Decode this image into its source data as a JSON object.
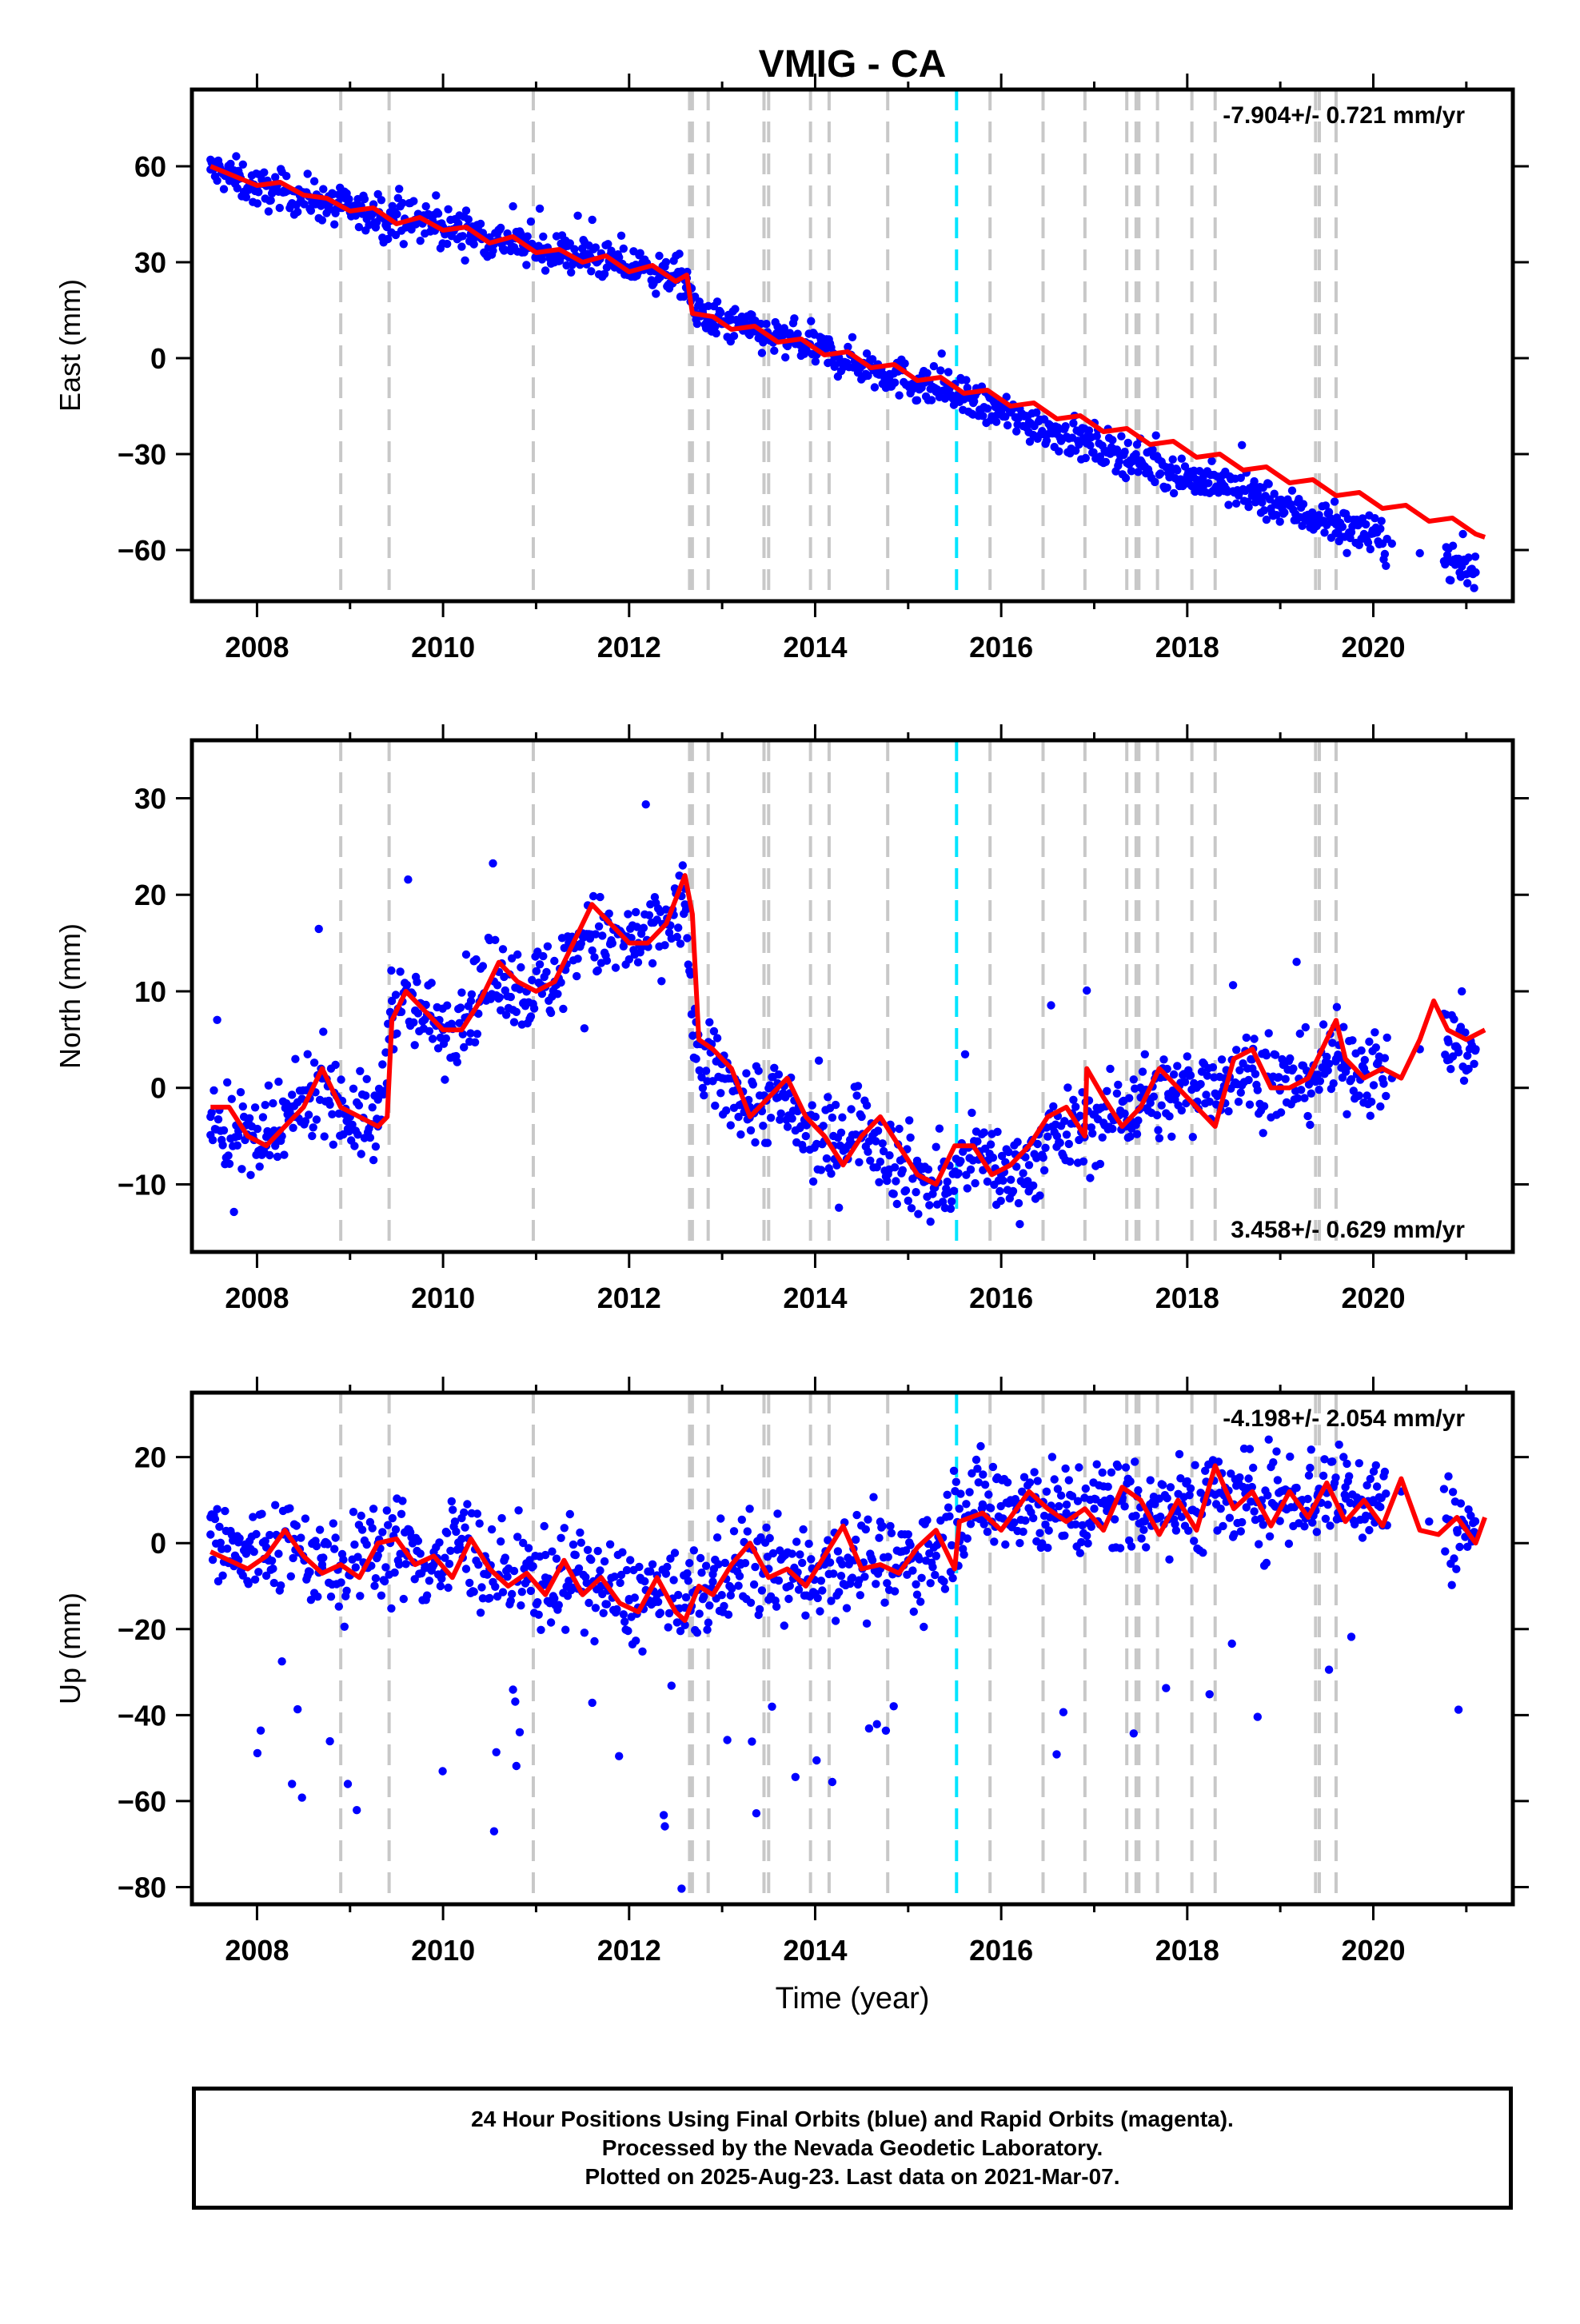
{
  "title": "VMIG - CA",
  "colors": {
    "data": "#0000ff",
    "model": "#ff0000",
    "event_line": "#c8c8c8",
    "equipment_line": "#00e5ff"
  },
  "xaxis": {
    "label": "Time (year)",
    "range": [
      2007.3,
      2021.5
    ],
    "ticks": [
      2008,
      2010,
      2012,
      2014,
      2016,
      2018,
      2020
    ],
    "tick_labels": [
      "2008",
      "2010",
      "2012",
      "2014",
      "2016",
      "2018",
      "2020"
    ]
  },
  "event_lines": [
    2008.9,
    2009.42,
    2010.97,
    2012.65,
    2012.68,
    2012.85,
    2013.45,
    2013.5,
    2013.95,
    2014.15,
    2014.78,
    2015.88,
    2016.45,
    2016.9,
    2017.35,
    2017.45,
    2017.48,
    2017.68,
    2018.05,
    2018.3,
    2019.38,
    2019.42,
    2019.6
  ],
  "equipment_lines": [
    2015.52
  ],
  "caption": [
    "24 Hour Positions Using Final Orbits (blue) and Rapid Orbits (magenta).",
    "Processed by the Nevada Geodetic Laboratory.",
    "Plotted on 2025-Aug-23. Last data on 2021-Mar-07."
  ],
  "chart_data": [
    {
      "type": "scatter",
      "name": "east",
      "ylabel": "East (mm)",
      "ylim": [
        -76,
        84
      ],
      "yticks": [
        60,
        30,
        0,
        -30,
        -60
      ],
      "ytick_labels": [
        "60",
        "30",
        "0",
        "−30",
        "−60"
      ],
      "rate_label": "-7.904+/- 0.721 mm/yr",
      "rate_position": "top-right",
      "x": [
        2007.5,
        2007.8,
        2008.0,
        2008.3,
        2008.6,
        2008.9,
        2009.2,
        2009.45,
        2009.7,
        2010.0,
        2010.3,
        2010.6,
        2010.9,
        2011.2,
        2011.5,
        2011.8,
        2012.1,
        2012.4,
        2012.62,
        2012.7,
        2013.0,
        2013.3,
        2013.6,
        2013.9,
        2014.2,
        2014.5,
        2014.8,
        2015.1,
        2015.4,
        2015.7,
        2016.0,
        2016.3,
        2016.6,
        2016.9,
        2017.2,
        2017.5,
        2017.8,
        2018.1,
        2018.4,
        2018.7,
        2019.0,
        2019.3,
        2019.6,
        2019.9,
        2020.2,
        2020.5,
        2020.8,
        2021.1
      ],
      "y": [
        59,
        56,
        53,
        52,
        50,
        47,
        45,
        44,
        43,
        41,
        39,
        37,
        35,
        33,
        32,
        30,
        28,
        26,
        25,
        14,
        11,
        9,
        6,
        4,
        1,
        -2,
        -5,
        -8,
        -10,
        -14,
        -17,
        -20,
        -23,
        -26,
        -29,
        -32,
        -35,
        -38,
        -40,
        -43,
        -46,
        -49,
        -52,
        -55,
        -58,
        -61,
        -63,
        -67
      ],
      "model": [
        [
          2007.5,
          60
        ],
        [
          2007.75,
          57
        ],
        [
          2008.0,
          54
        ],
        [
          2008.25,
          55
        ],
        [
          2008.5,
          51
        ],
        [
          2008.75,
          50
        ],
        [
          2009.0,
          46
        ],
        [
          2009.25,
          47
        ],
        [
          2009.5,
          42
        ],
        [
          2009.75,
          44
        ],
        [
          2010.0,
          40
        ],
        [
          2010.25,
          41
        ],
        [
          2010.5,
          36
        ],
        [
          2010.75,
          38
        ],
        [
          2011.0,
          33
        ],
        [
          2011.25,
          34
        ],
        [
          2011.5,
          30
        ],
        [
          2011.75,
          32
        ],
        [
          2012.0,
          27
        ],
        [
          2012.25,
          29
        ],
        [
          2012.5,
          24
        ],
        [
          2012.62,
          26
        ],
        [
          2012.68,
          14
        ],
        [
          2012.9,
          13
        ],
        [
          2013.1,
          9
        ],
        [
          2013.35,
          10
        ],
        [
          2013.6,
          5
        ],
        [
          2013.85,
          6
        ],
        [
          2014.1,
          1
        ],
        [
          2014.35,
          2
        ],
        [
          2014.6,
          -3
        ],
        [
          2014.85,
          -2
        ],
        [
          2015.1,
          -7
        ],
        [
          2015.35,
          -6
        ],
        [
          2015.6,
          -11
        ],
        [
          2015.85,
          -10
        ],
        [
          2016.1,
          -15
        ],
        [
          2016.35,
          -14
        ],
        [
          2016.6,
          -19
        ],
        [
          2016.85,
          -18
        ],
        [
          2017.1,
          -23
        ],
        [
          2017.35,
          -22
        ],
        [
          2017.6,
          -27
        ],
        [
          2017.85,
          -26
        ],
        [
          2018.1,
          -31
        ],
        [
          2018.35,
          -30
        ],
        [
          2018.6,
          -35
        ],
        [
          2018.85,
          -34
        ],
        [
          2019.1,
          -39
        ],
        [
          2019.35,
          -38
        ],
        [
          2019.6,
          -43
        ],
        [
          2019.85,
          -42
        ],
        [
          2020.1,
          -47
        ],
        [
          2020.35,
          -46
        ],
        [
          2020.6,
          -51
        ],
        [
          2020.85,
          -50
        ],
        [
          2021.1,
          -55
        ],
        [
          2021.2,
          -56
        ]
      ]
    },
    {
      "type": "scatter",
      "name": "north",
      "ylabel": "North (mm)",
      "ylim": [
        -17,
        36
      ],
      "yticks": [
        30,
        20,
        10,
        0,
        -10
      ],
      "ytick_labels": [
        "30",
        "20",
        "10",
        "0",
        "−10"
      ],
      "rate_label": "3.458+/- 0.629 mm/yr",
      "rate_position": "bottom-right",
      "x": [
        2007.5,
        2007.8,
        2008.1,
        2008.4,
        2008.7,
        2009.0,
        2009.3,
        2009.45,
        2009.7,
        2010.0,
        2010.3,
        2010.6,
        2010.9,
        2011.2,
        2011.5,
        2011.8,
        2012.1,
        2012.4,
        2012.6,
        2012.72,
        2013.0,
        2013.3,
        2013.6,
        2013.9,
        2014.2,
        2014.5,
        2014.8,
        2015.1,
        2015.4,
        2015.7,
        2016.0,
        2016.3,
        2016.6,
        2016.9,
        2017.2,
        2017.5,
        2017.8,
        2018.1,
        2018.4,
        2018.7,
        2019.0,
        2019.3,
        2019.6,
        2019.9,
        2020.2,
        2020.5,
        2020.8,
        2021.1
      ],
      "y": [
        -3,
        -5,
        -6,
        -3,
        1,
        -3,
        -4,
        9,
        8,
        6,
        9,
        12,
        10,
        11,
        16,
        15,
        15,
        17,
        19,
        3,
        1,
        -2,
        -1,
        -5,
        -6,
        -3,
        -7,
        -9,
        -11,
        -6,
        -9,
        -8,
        -5,
        -4,
        -3,
        -1,
        -1,
        0,
        1,
        2,
        0,
        1,
        3,
        2,
        1,
        4,
        5,
        4
      ],
      "model": [
        [
          2007.5,
          -2
        ],
        [
          2007.7,
          -2
        ],
        [
          2007.9,
          -5
        ],
        [
          2008.1,
          -6
        ],
        [
          2008.3,
          -4
        ],
        [
          2008.5,
          -2
        ],
        [
          2008.7,
          2
        ],
        [
          2008.9,
          -2
        ],
        [
          2009.1,
          -3
        ],
        [
          2009.3,
          -4
        ],
        [
          2009.4,
          -3
        ],
        [
          2009.45,
          7
        ],
        [
          2009.6,
          10
        ],
        [
          2009.8,
          8
        ],
        [
          2010.0,
          6
        ],
        [
          2010.2,
          6
        ],
        [
          2010.4,
          9
        ],
        [
          2010.6,
          13
        ],
        [
          2010.8,
          11
        ],
        [
          2011.0,
          10
        ],
        [
          2011.2,
          11
        ],
        [
          2011.4,
          15
        ],
        [
          2011.6,
          19
        ],
        [
          2011.8,
          17
        ],
        [
          2012.0,
          15
        ],
        [
          2012.2,
          15
        ],
        [
          2012.4,
          17
        ],
        [
          2012.6,
          22
        ],
        [
          2012.68,
          18
        ],
        [
          2012.75,
          5
        ],
        [
          2012.9,
          4
        ],
        [
          2013.1,
          2
        ],
        [
          2013.3,
          -3
        ],
        [
          2013.5,
          -1
        ],
        [
          2013.7,
          1
        ],
        [
          2013.9,
          -3
        ],
        [
          2014.1,
          -5
        ],
        [
          2014.3,
          -8
        ],
        [
          2014.5,
          -5
        ],
        [
          2014.7,
          -3
        ],
        [
          2014.9,
          -6
        ],
        [
          2015.1,
          -9
        ],
        [
          2015.3,
          -10
        ],
        [
          2015.5,
          -6
        ],
        [
          2015.7,
          -6
        ],
        [
          2015.9,
          -9
        ],
        [
          2016.1,
          -8
        ],
        [
          2016.3,
          -6
        ],
        [
          2016.5,
          -3
        ],
        [
          2016.7,
          -2
        ],
        [
          2016.9,
          -5
        ],
        [
          2016.92,
          2
        ],
        [
          2017.1,
          -1
        ],
        [
          2017.3,
          -4
        ],
        [
          2017.5,
          -2
        ],
        [
          2017.7,
          2
        ],
        [
          2017.9,
          0
        ],
        [
          2018.1,
          -2
        ],
        [
          2018.3,
          -4
        ],
        [
          2018.5,
          3
        ],
        [
          2018.7,
          4
        ],
        [
          2018.9,
          0
        ],
        [
          2019.1,
          0
        ],
        [
          2019.3,
          1
        ],
        [
          2019.5,
          5
        ],
        [
          2019.6,
          7
        ],
        [
          2019.7,
          3
        ],
        [
          2019.9,
          1
        ],
        [
          2020.1,
          2
        ],
        [
          2020.3,
          1
        ],
        [
          2020.5,
          5
        ],
        [
          2020.65,
          9
        ],
        [
          2020.8,
          6
        ],
        [
          2021.0,
          5
        ],
        [
          2021.2,
          6
        ]
      ]
    },
    {
      "type": "scatter",
      "name": "up",
      "ylabel": "Up (mm)",
      "ylim": [
        -84,
        35
      ],
      "yticks": [
        20,
        0,
        -20,
        -40,
        -60,
        -80
      ],
      "ytick_labels": [
        "20",
        "0",
        "−20",
        "−40",
        "−60",
        "−80"
      ],
      "rate_label": "-4.198+/- 2.054 mm/yr",
      "rate_position": "top-right",
      "x": [
        2007.5,
        2007.8,
        2008.1,
        2008.4,
        2008.7,
        2009.0,
        2009.3,
        2009.6,
        2009.9,
        2010.2,
        2010.5,
        2010.8,
        2011.1,
        2011.4,
        2011.7,
        2012.0,
        2012.3,
        2012.6,
        2012.9,
        2013.2,
        2013.5,
        2013.8,
        2014.1,
        2014.4,
        2014.7,
        2015.0,
        2015.3,
        2015.55,
        2015.8,
        2016.1,
        2016.4,
        2016.7,
        2017.0,
        2017.3,
        2017.6,
        2017.9,
        2018.2,
        2018.5,
        2018.8,
        2019.1,
        2019.4,
        2019.7,
        2020.0,
        2020.3,
        2020.6,
        2020.9,
        2021.1
      ],
      "y": [
        2,
        -4,
        -1,
        1,
        -5,
        -7,
        0,
        -2,
        -5,
        1,
        -6,
        -9,
        -8,
        -7,
        -10,
        -13,
        -12,
        -15,
        -9,
        -5,
        -6,
        -8,
        -5,
        -4,
        -6,
        -4,
        -3,
        8,
        9,
        10,
        9,
        7,
        8,
        10,
        9,
        8,
        11,
        9,
        10,
        12,
        11,
        13,
        10,
        12,
        5,
        3,
        2
      ],
      "model": [
        [
          2007.5,
          -2
        ],
        [
          2007.7,
          -4
        ],
        [
          2007.9,
          -6
        ],
        [
          2008.1,
          -3
        ],
        [
          2008.3,
          3
        ],
        [
          2008.5,
          -3
        ],
        [
          2008.7,
          -7
        ],
        [
          2008.9,
          -5
        ],
        [
          2009.1,
          -8
        ],
        [
          2009.3,
          0
        ],
        [
          2009.5,
          1
        ],
        [
          2009.7,
          -5
        ],
        [
          2009.9,
          -3
        ],
        [
          2010.1,
          -8
        ],
        [
          2010.3,
          1
        ],
        [
          2010.5,
          -6
        ],
        [
          2010.7,
          -10
        ],
        [
          2010.9,
          -7
        ],
        [
          2011.1,
          -12
        ],
        [
          2011.3,
          -4
        ],
        [
          2011.5,
          -12
        ],
        [
          2011.7,
          -8
        ],
        [
          2011.9,
          -14
        ],
        [
          2012.1,
          -16
        ],
        [
          2012.3,
          -8
        ],
        [
          2012.5,
          -16
        ],
        [
          2012.6,
          -18
        ],
        [
          2012.75,
          -10
        ],
        [
          2012.9,
          -12
        ],
        [
          2013.1,
          -5
        ],
        [
          2013.3,
          0
        ],
        [
          2013.5,
          -8
        ],
        [
          2013.7,
          -6
        ],
        [
          2013.9,
          -10
        ],
        [
          2014.1,
          -3
        ],
        [
          2014.3,
          4
        ],
        [
          2014.5,
          -6
        ],
        [
          2014.7,
          -5
        ],
        [
          2014.9,
          -7
        ],
        [
          2015.1,
          -1
        ],
        [
          2015.3,
          3
        ],
        [
          2015.5,
          -6
        ],
        [
          2015.55,
          5
        ],
        [
          2015.8,
          7
        ],
        [
          2016.0,
          3
        ],
        [
          2016.3,
          12
        ],
        [
          2016.5,
          8
        ],
        [
          2016.7,
          5
        ],
        [
          2016.9,
          8
        ],
        [
          2017.1,
          3
        ],
        [
          2017.3,
          13
        ],
        [
          2017.5,
          10
        ],
        [
          2017.7,
          2
        ],
        [
          2017.9,
          10
        ],
        [
          2018.1,
          3
        ],
        [
          2018.3,
          18
        ],
        [
          2018.5,
          8
        ],
        [
          2018.7,
          12
        ],
        [
          2018.9,
          4
        ],
        [
          2019.1,
          12
        ],
        [
          2019.3,
          6
        ],
        [
          2019.5,
          14
        ],
        [
          2019.7,
          5
        ],
        [
          2019.9,
          10
        ],
        [
          2020.1,
          4
        ],
        [
          2020.3,
          15
        ],
        [
          2020.5,
          3
        ],
        [
          2020.7,
          2
        ],
        [
          2020.9,
          6
        ],
        [
          2021.1,
          0
        ],
        [
          2021.2,
          6
        ]
      ]
    }
  ]
}
